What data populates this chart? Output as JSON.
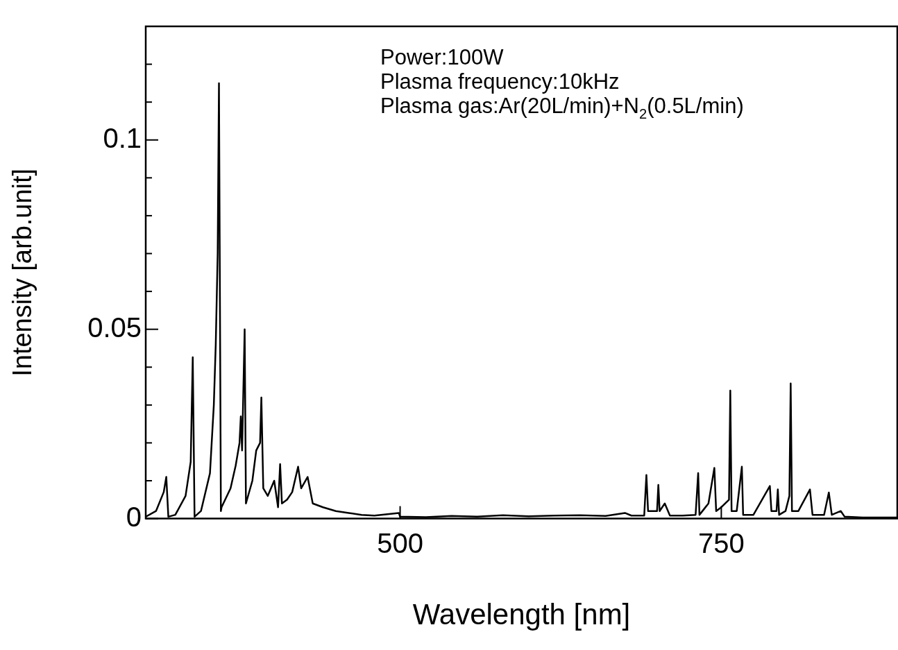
{
  "chart_data": {
    "type": "line",
    "xlabel": "Wavelength [nm]",
    "ylabel": "Intensity [arb.unit]",
    "annotations": [
      "Power:100W",
      "Plasma frequency:10kHz",
      "Plasma gas:Ar(20L/min)+N$_{2}$(0.5L/min)"
    ],
    "xlim": [
      302,
      887
    ],
    "xticks": [
      500,
      750
    ],
    "ylim": [
      0,
      0.13
    ],
    "yticks": [
      0,
      {
        "value": 0.01,
        "label": null
      },
      {
        "value": 0.02,
        "label": null
      },
      {
        "value": 0.03,
        "label": null
      },
      {
        "value": 0.04,
        "label": null
      },
      0.05,
      {
        "value": 0.06,
        "label": null
      },
      {
        "value": 0.07,
        "label": null
      },
      {
        "value": 0.08,
        "label": null
      },
      {
        "value": 0.09,
        "label": null
      },
      0.1,
      {
        "value": 0.11,
        "label": null
      },
      {
        "value": 0.12,
        "label": null
      }
    ],
    "marker": "none",
    "legend": false,
    "series": [
      {
        "color": "#000000",
        "x": [
          302,
          310,
          316,
          318,
          319.6,
          325,
          333,
          337,
          338.6,
          340,
          345,
          352,
          355,
          356.5,
          358,
          359,
          360.5,
          361,
          368,
          372,
          375,
          376,
          377,
          379,
          380,
          385,
          388,
          391,
          392,
          393.5,
          397,
          402,
          405,
          406.6,
          408,
          412,
          416,
          420.6,
          423,
          428,
          432,
          440,
          450,
          460,
          470,
          480,
          499,
          500,
          520,
          540,
          560,
          580,
          600,
          620,
          640,
          660,
          675,
          680,
          690,
          691.7,
          693,
          700,
          701,
          702,
          706,
          710,
          720,
          730,
          732,
          733,
          740,
          744.6,
          746,
          750,
          756,
          757,
          758,
          762,
          766,
          767,
          775,
          787.8,
          789,
          793,
          794,
          795,
          800,
          803,
          804,
          805,
          810,
          819,
          821,
          830,
          833.7,
          836,
          843,
          846,
          860,
          887
        ],
        "values": [
          0.0005,
          0.002,
          0.007,
          0.011,
          0.0005,
          0.001,
          0.006,
          0.015,
          0.0426,
          0.0005,
          0.002,
          0.012,
          0.03,
          0.046,
          0.07,
          0.115,
          0.002,
          0.003,
          0.008,
          0.014,
          0.02,
          0.027,
          0.018,
          0.05,
          0.004,
          0.01,
          0.018,
          0.02,
          0.032,
          0.008,
          0.006,
          0.01,
          0.003,
          0.0144,
          0.004,
          0.005,
          0.007,
          0.0137,
          0.008,
          0.011,
          0.004,
          0.003,
          0.002,
          0.0015,
          0.001,
          0.0008,
          0.0015,
          0.0005,
          0.0004,
          0.0007,
          0.0005,
          0.0009,
          0.0006,
          0.0008,
          0.0009,
          0.0007,
          0.0015,
          0.0008,
          0.0008,
          0.0115,
          0.002,
          0.002,
          0.0089,
          0.002,
          0.004,
          0.0008,
          0.0008,
          0.001,
          0.012,
          0.001,
          0.004,
          0.0134,
          0.002,
          0.003,
          0.005,
          0.0338,
          0.002,
          0.002,
          0.0137,
          0.001,
          0.001,
          0.0086,
          0.002,
          0.002,
          0.0077,
          0.001,
          0.002,
          0.006,
          0.0357,
          0.002,
          0.002,
          0.0077,
          0.001,
          0.001,
          0.0069,
          0.001,
          0.002,
          0.0005,
          0.0003,
          0.0003
        ]
      }
    ]
  }
}
